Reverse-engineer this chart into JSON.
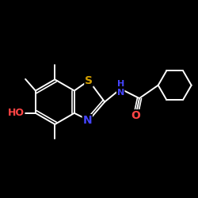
{
  "background_color": "#000000",
  "bond_color": "#ffffff",
  "atom_colors": {
    "S": "#d4a000",
    "N": "#4444ff",
    "O": "#ff4444",
    "HO": "#ff4444"
  },
  "font_size_atoms": 9,
  "figure_size": [
    2.5,
    2.5
  ],
  "dpi": 100,
  "xlim": [
    -0.65,
    0.72
  ],
  "ylim": [
    -0.5,
    0.5
  ]
}
